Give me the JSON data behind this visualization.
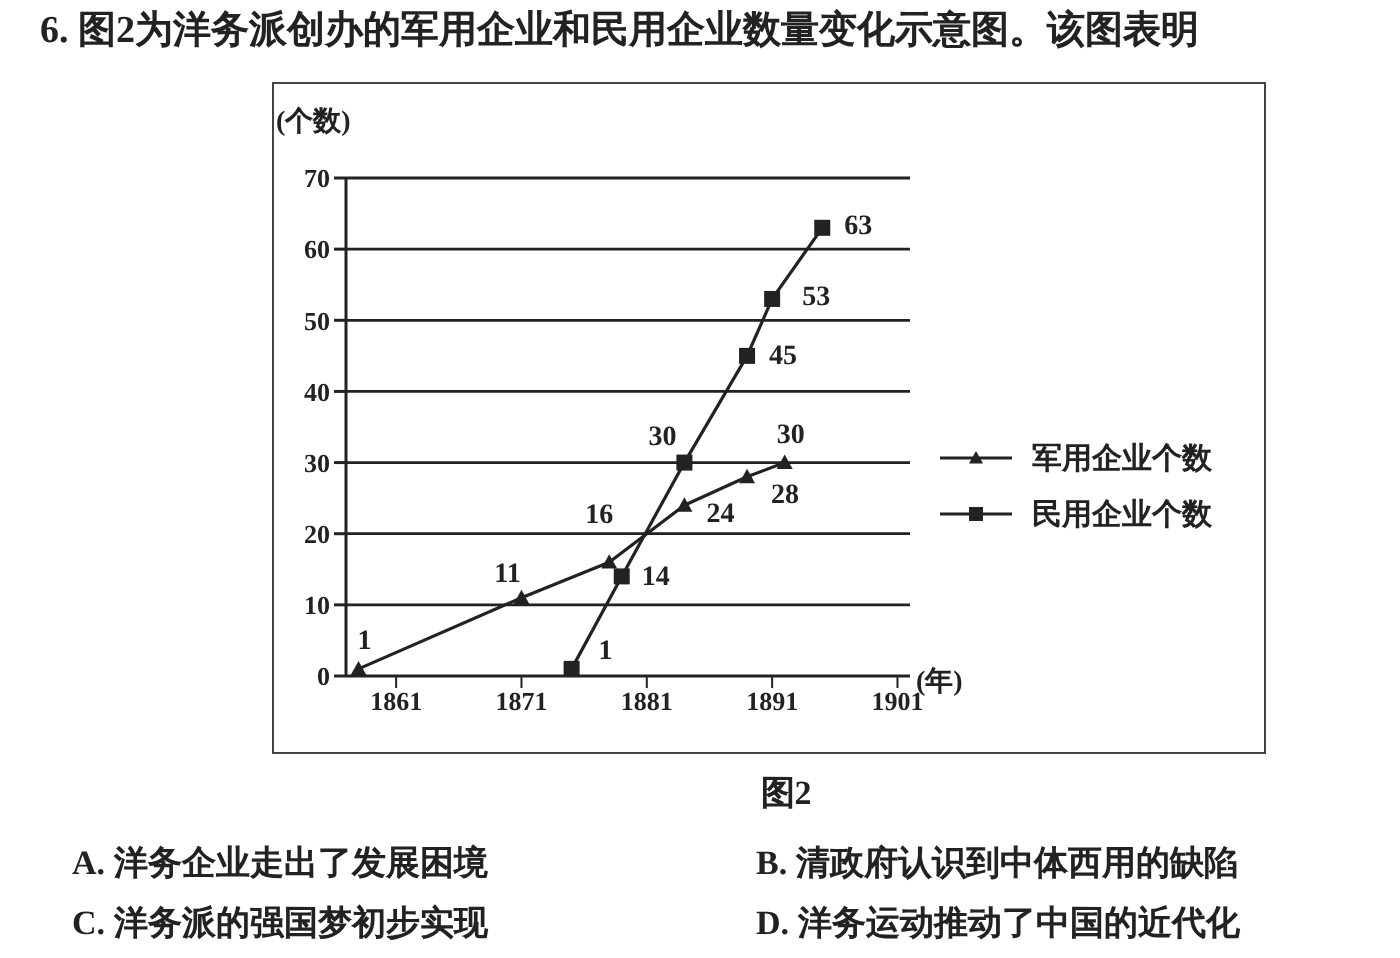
{
  "chart_data": {
    "type": "line",
    "title": "6. 图2为洋务派创办的军用企业和民用企业数量变化示意图。该图表明",
    "ylabel": "(个数)",
    "xlabel": "(年)",
    "annotations": [
      "图2",
      "A. 洋务企业走出了发展困境",
      "B. 清政府认识到中体西用的缺陷",
      "C. 洋务派的强国梦初步实现",
      "D. 洋务运动推动了中国的近代化"
    ],
    "xlim": [
      1857,
      1902
    ],
    "xticks": [
      1861,
      1871,
      1881,
      1891,
      1901
    ],
    "ylim": [
      0,
      70
    ],
    "yticks": [
      0,
      10,
      20,
      30,
      40,
      50,
      60,
      70
    ],
    "grid": "y",
    "legend": "right",
    "data_labels": true,
    "series": [
      {
        "name": "军用企业个数",
        "color": "#222222",
        "marker": "triangle",
        "x": [
          1858,
          1871,
          1878,
          1884,
          1889,
          1892
        ],
        "values": [
          1,
          11,
          16,
          24,
          28,
          30
        ]
      },
      {
        "name": "民用企业个数",
        "color": "#222222",
        "marker": "square",
        "x": [
          1875,
          1879,
          1884,
          1889,
          1891,
          1895
        ],
        "values": [
          1,
          14,
          30,
          45,
          53,
          63
        ]
      }
    ]
  }
}
